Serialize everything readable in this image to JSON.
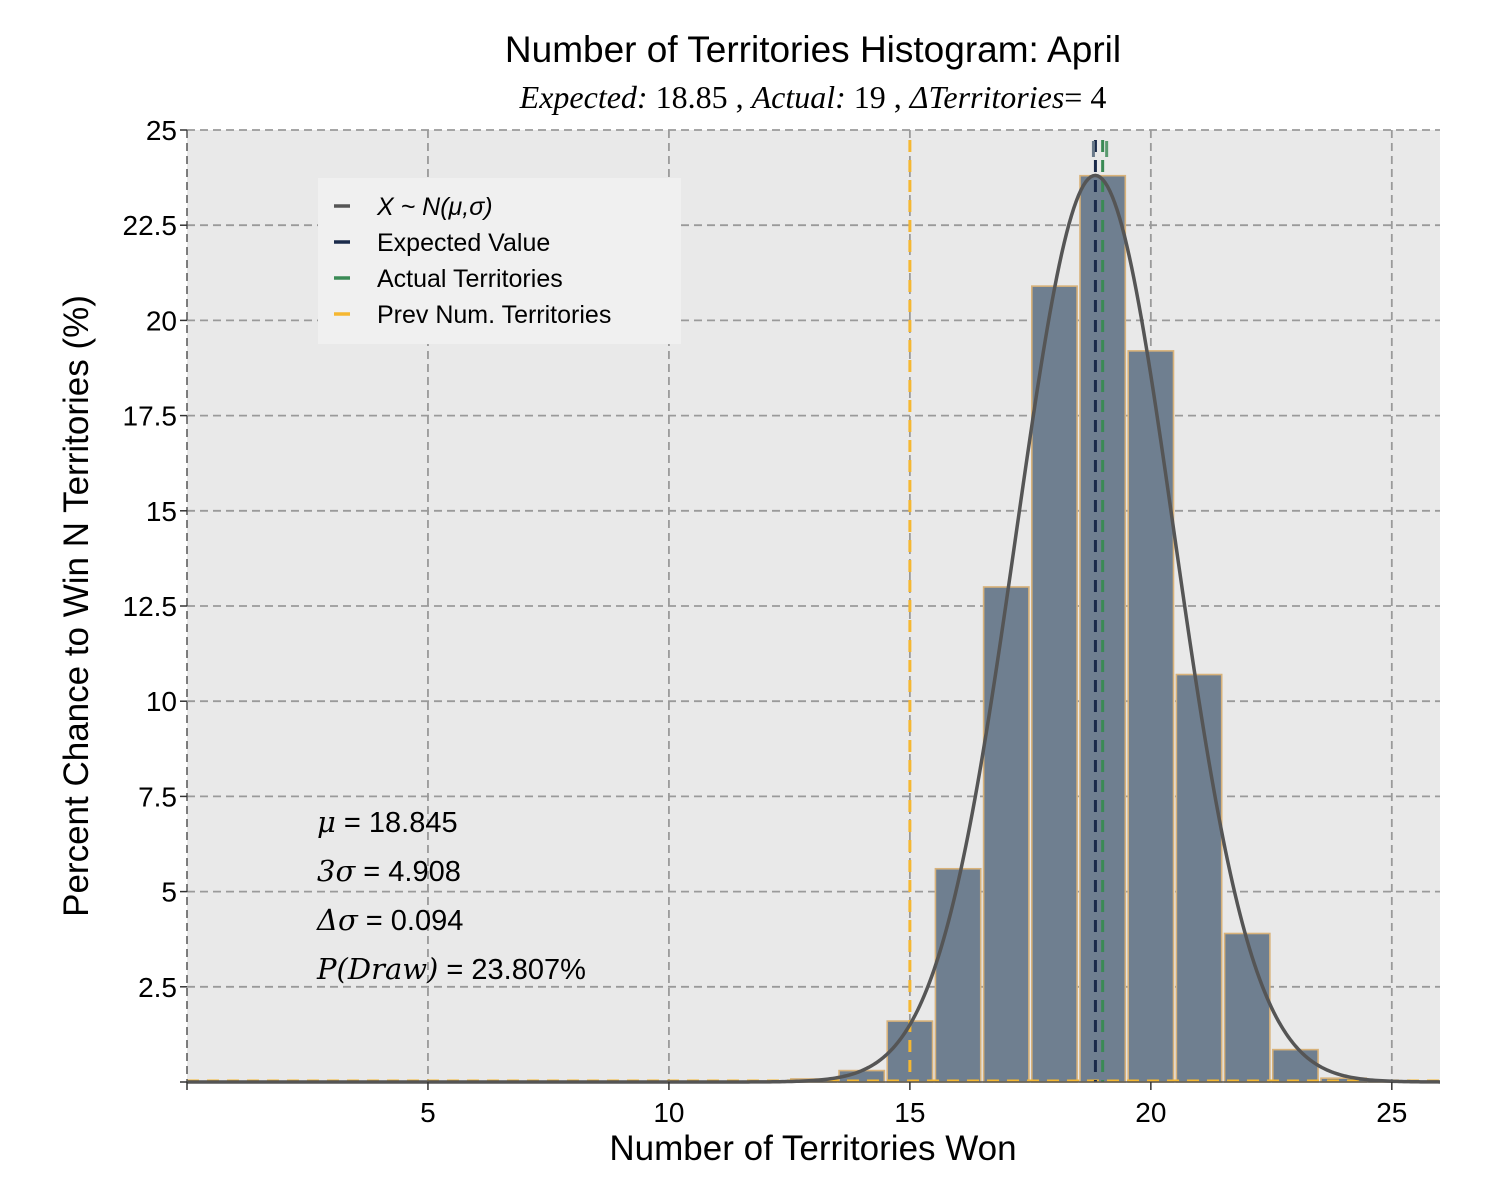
{
  "chart_data": {
    "type": "bar",
    "title": "Number of Territories Histogram: April",
    "subtitle": {
      "expected_label": "Expected:",
      "expected_value": "18.85",
      "actual_label": "Actual:",
      "actual_value": "19",
      "delta_label": "ΔTerritories",
      "delta_value": "= 4",
      "separator": ","
    },
    "xlabel": "Number of Territories Won",
    "ylabel": "Percent Chance to Win N Territories (%)",
    "xlim": [
      0,
      26
    ],
    "ylim": [
      0,
      25
    ],
    "x_ticks": [
      5,
      10,
      15,
      20,
      25
    ],
    "y_ticks": [
      2.5,
      5,
      7.5,
      10,
      12.5,
      15,
      17.5,
      20,
      22.5,
      25
    ],
    "grid": true,
    "background": "#e9e9e9",
    "bar_color": "#6f7f90",
    "bar_edge_color": "#d8b27a",
    "x": [
      12,
      13,
      14,
      15,
      16,
      17,
      18,
      19,
      20,
      21,
      22,
      23,
      24,
      25
    ],
    "values": [
      0.02,
      0.08,
      0.3,
      1.6,
      5.6,
      13.0,
      20.9,
      23.8,
      19.2,
      10.7,
      3.9,
      0.85,
      0.1,
      0.01
    ],
    "normal_curve": {
      "mu": 18.845,
      "sigma": 1.636,
      "peak": 23.807,
      "color": "#555555"
    },
    "reference_lines": {
      "expected": {
        "x": 18.85,
        "color": "#1a2a4a"
      },
      "actual": {
        "x": 19,
        "color": "#3a8a55"
      },
      "previous": {
        "x": 15,
        "color": "#f5b731"
      }
    },
    "legend": {
      "position": "top-left",
      "entries": [
        {
          "label": "X ~ N(μ,σ)",
          "color": "#555555",
          "italic": true
        },
        {
          "label": "Expected Value",
          "color": "#1a2a4a",
          "italic": false
        },
        {
          "label": "Actual Territories",
          "color": "#3a8a55",
          "italic": false
        },
        {
          "label": "Prev Num. Territories",
          "color": "#f5b731",
          "italic": false
        }
      ]
    },
    "stats": [
      {
        "symbol": "μ",
        "text": " = 18.845"
      },
      {
        "symbol": "3σ",
        "text": " = 4.908"
      },
      {
        "symbol": "Δσ",
        "text": " = 0.094"
      },
      {
        "symbol": "P(Draw)",
        "text": " = 23.807%"
      }
    ]
  }
}
